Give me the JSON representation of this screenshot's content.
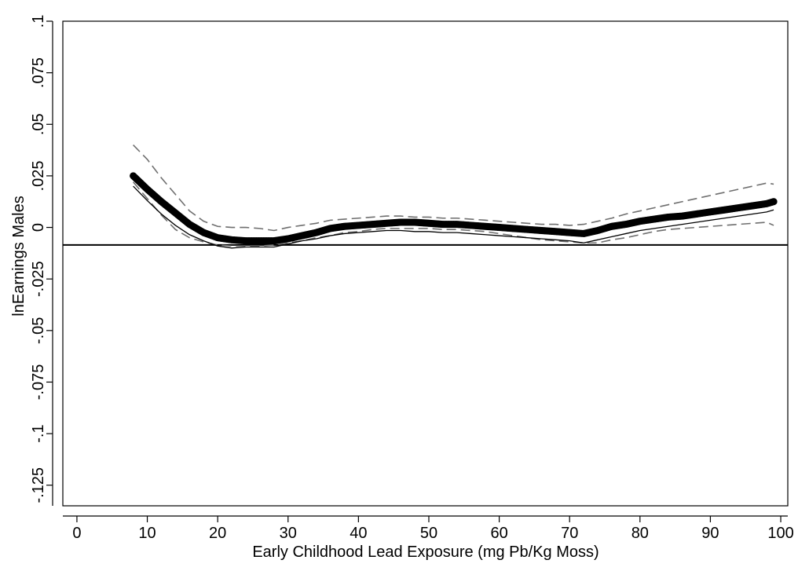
{
  "chart_data": {
    "type": "line",
    "title": "",
    "xlabel": "Early Childhood Lead Exposure (mg Pb/Kg Moss)",
    "ylabel": "lnEarnings Males",
    "xlim": [
      -2,
      101
    ],
    "ylim": [
      -0.135,
      0.1
    ],
    "xticks": [
      0,
      10,
      20,
      30,
      40,
      50,
      60,
      70,
      80,
      90,
      100
    ],
    "xtick_labels": [
      "0",
      "10",
      "20",
      "30",
      "40",
      "50",
      "60",
      "70",
      "80",
      "90",
      "100"
    ],
    "yticks": [
      -0.125,
      -0.1,
      -0.075,
      -0.05,
      -0.025,
      0,
      0.025,
      0.05,
      0.075,
      0.1
    ],
    "ytick_labels": [
      "-.125",
      "-.1",
      "-.075",
      "-.05",
      "-.025",
      "0",
      ".025",
      ".05",
      ".075",
      ".1"
    ],
    "grid": false,
    "legend": "none",
    "reference_line_y": -0.0085,
    "series": [
      {
        "style": "thick-markers",
        "color": "#000000",
        "x": [
          8,
          10,
          12,
          14,
          16,
          18,
          20,
          22,
          24,
          26,
          28,
          30,
          32,
          34,
          36,
          38,
          40,
          42,
          44,
          46,
          48,
          50,
          52,
          54,
          56,
          58,
          60,
          62,
          64,
          66,
          68,
          70,
          72,
          74,
          76,
          78,
          80,
          82,
          84,
          86,
          88,
          90,
          92,
          94,
          96,
          98,
          99
        ],
        "y": [
          0.025,
          0.0185,
          0.0125,
          0.007,
          0.0015,
          -0.0025,
          -0.005,
          -0.006,
          -0.0065,
          -0.0065,
          -0.0065,
          -0.0055,
          -0.004,
          -0.0025,
          -0.0005,
          0.0005,
          0.001,
          0.0015,
          0.002,
          0.0025,
          0.0025,
          0.002,
          0.0015,
          0.0015,
          0.001,
          0.0005,
          0.0,
          -0.0005,
          -0.001,
          -0.0015,
          -0.002,
          -0.0025,
          -0.003,
          -0.0015,
          0.0005,
          0.0015,
          0.003,
          0.004,
          0.005,
          0.0055,
          0.0065,
          0.0075,
          0.0085,
          0.0095,
          0.0105,
          0.0115,
          0.0125
        ]
      },
      {
        "style": "dashed",
        "color": "#6e6e6e",
        "x": [
          8,
          10,
          12,
          14,
          16,
          18,
          20,
          22,
          24,
          26,
          28,
          30,
          32,
          34,
          36,
          38,
          40,
          42,
          44,
          46,
          48,
          50,
          52,
          54,
          56,
          58,
          60,
          62,
          64,
          66,
          68,
          70,
          72,
          74,
          76,
          78,
          80,
          82,
          84,
          86,
          88,
          90,
          92,
          94,
          96,
          98,
          99
        ],
        "y": [
          0.04,
          0.033,
          0.024,
          0.016,
          0.008,
          0.003,
          0.0005,
          0.0,
          0.0,
          -0.0005,
          -0.0015,
          0.0,
          0.001,
          0.002,
          0.0035,
          0.004,
          0.0045,
          0.005,
          0.0055,
          0.0055,
          0.005,
          0.005,
          0.0045,
          0.0045,
          0.004,
          0.0035,
          0.003,
          0.0025,
          0.002,
          0.0015,
          0.0015,
          0.001,
          0.0015,
          0.003,
          0.0045,
          0.0065,
          0.008,
          0.0095,
          0.011,
          0.0125,
          0.014,
          0.0155,
          0.017,
          0.0185,
          0.02,
          0.0215,
          0.021
        ]
      },
      {
        "style": "dashed",
        "color": "#6e6e6e",
        "x": [
          8,
          10,
          12,
          14,
          16,
          18,
          20,
          22,
          24,
          26,
          28,
          30,
          32,
          34,
          36,
          38,
          40,
          42,
          44,
          46,
          48,
          50,
          52,
          54,
          56,
          58,
          60,
          62,
          64,
          66,
          68,
          70,
          72,
          74,
          76,
          78,
          80,
          82,
          84,
          86,
          88,
          90,
          92,
          94,
          96,
          98,
          99
        ],
        "y": [
          0.022,
          0.014,
          0.006,
          -0.001,
          -0.005,
          -0.007,
          -0.0085,
          -0.009,
          -0.009,
          -0.009,
          -0.0085,
          -0.0075,
          -0.0065,
          -0.005,
          -0.004,
          -0.0025,
          -0.002,
          -0.001,
          -0.0005,
          -0.0005,
          -0.0005,
          -0.0005,
          -0.001,
          -0.001,
          -0.0015,
          -0.002,
          -0.003,
          -0.004,
          -0.005,
          -0.006,
          -0.0065,
          -0.007,
          -0.0075,
          -0.0075,
          -0.006,
          -0.005,
          -0.0035,
          -0.002,
          -0.001,
          -0.0005,
          0.0,
          0.0005,
          0.001,
          0.0015,
          0.002,
          0.0025,
          0.001
        ]
      },
      {
        "style": "thin-solid",
        "color": "#000000",
        "x": [
          8,
          10,
          12,
          14,
          16,
          18,
          20,
          22,
          24,
          26,
          28,
          30,
          32,
          34,
          36,
          38,
          40,
          42,
          44,
          46,
          48,
          50,
          52,
          54,
          56,
          58,
          60,
          62,
          64,
          66,
          68,
          70,
          72,
          74,
          76,
          78,
          80,
          82,
          84,
          86,
          88,
          90,
          92,
          94,
          96,
          98,
          99
        ],
        "y": [
          0.02,
          0.013,
          0.0065,
          0.001,
          -0.0035,
          -0.0065,
          -0.009,
          -0.01,
          -0.0095,
          -0.0095,
          -0.0095,
          -0.008,
          -0.0065,
          -0.0055,
          -0.004,
          -0.003,
          -0.0025,
          -0.002,
          -0.0015,
          -0.0015,
          -0.002,
          -0.002,
          -0.0025,
          -0.0025,
          -0.003,
          -0.0035,
          -0.004,
          -0.0045,
          -0.005,
          -0.0055,
          -0.006,
          -0.0065,
          -0.0075,
          -0.006,
          -0.0045,
          -0.003,
          -0.0015,
          -0.0005,
          0.0005,
          0.0015,
          0.0025,
          0.0035,
          0.0045,
          0.0055,
          0.0065,
          0.0075,
          0.0085
        ]
      }
    ]
  }
}
